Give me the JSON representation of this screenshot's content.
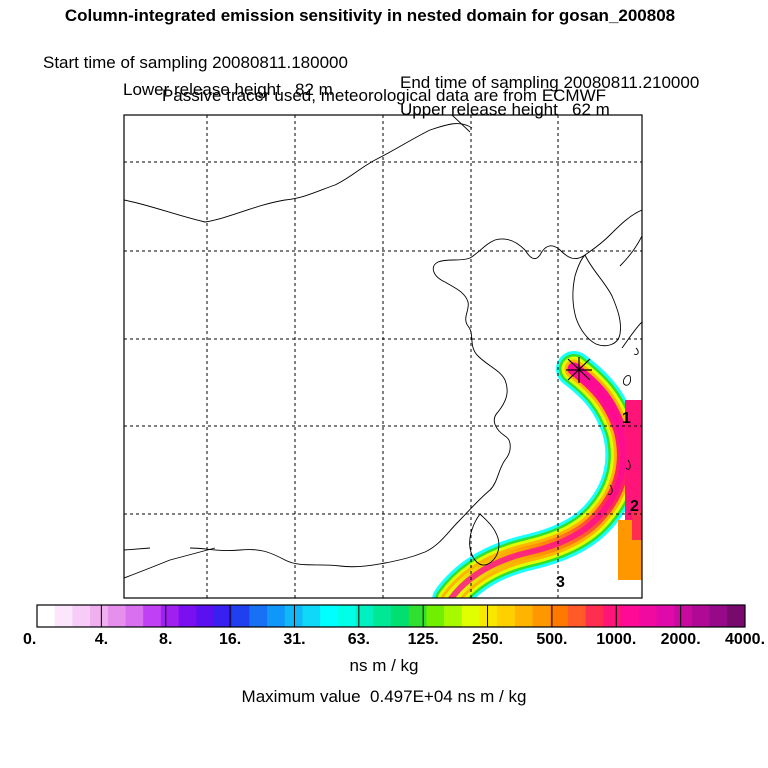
{
  "header": {
    "title": "Column-integrated emission sensitivity in nested domain for gosan_200808",
    "start_label": "Start time of sampling 20080811.180000",
    "end_label": "End time of sampling 20080811.210000",
    "lower_label": "Lower release height   82 m",
    "upper_label": "Upper release height   62 m",
    "tracer_note": "Passive tracer used, meteorological data are from ECMWF"
  },
  "map": {
    "release_site": "gosan",
    "day_markers": [
      "1",
      "2",
      "3"
    ]
  },
  "colorbar": {
    "tick_labels": [
      "0.",
      "4.",
      "8.",
      "16.",
      "31.",
      "63.",
      "125.",
      "250.",
      "500.",
      "1000.",
      "2000.",
      "4000."
    ],
    "colors": [
      "#ffffff",
      "#fbe6fb",
      "#f7ccf7",
      "#f0b0f0",
      "#e690ee",
      "#d870f0",
      "#c040f5",
      "#a020f0",
      "#7a10f0",
      "#5a10f0",
      "#3820f0",
      "#2040f0",
      "#1870f5",
      "#1098f8",
      "#10b8f8",
      "#10d8f8",
      "#00ffff",
      "#00ffe6",
      "#00f0c0",
      "#00e896",
      "#00e070",
      "#30e030",
      "#70f000",
      "#a8f800",
      "#e0ff00",
      "#f8e800",
      "#ffd000",
      "#ffb400",
      "#ff9800",
      "#ff7800",
      "#ff5a28",
      "#ff2d50",
      "#ff1478",
      "#ff0a96",
      "#f00aa0",
      "#e00aaa",
      "#c80aa0",
      "#ae0a96",
      "#960a8a",
      "#780a6e"
    ],
    "units": "ns m / kg"
  },
  "max_value_text": "Maximum value  0.497E+04 ns m / kg"
}
